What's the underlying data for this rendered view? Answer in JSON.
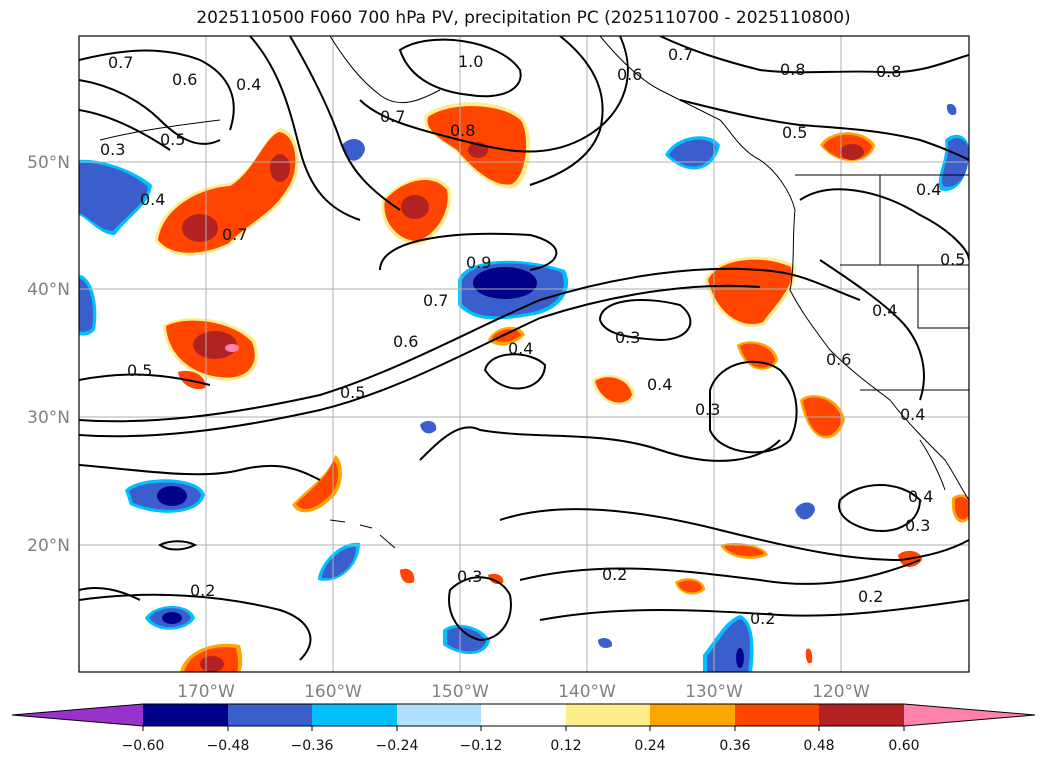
{
  "title": "2025110500 F060 700 hPa PV, precipitation PC (2025110700 - 2025110800)",
  "map": {
    "lon_labels": [
      "170°W",
      "160°W",
      "150°W",
      "140°W",
      "130°W",
      "120°W"
    ],
    "lat_labels": [
      "50°N",
      "40°N",
      "30°N",
      "20°N"
    ],
    "contour_labels": [
      {
        "text": "0.7"
      },
      {
        "text": "0.6"
      },
      {
        "text": "0.4"
      },
      {
        "text": "0.5"
      },
      {
        "text": "0.3"
      },
      {
        "text": "0.4"
      },
      {
        "text": "0.7"
      },
      {
        "text": "0.5"
      },
      {
        "text": "1.0"
      },
      {
        "text": "0.7"
      },
      {
        "text": "0.8"
      },
      {
        "text": "0.7"
      },
      {
        "text": "0.6"
      },
      {
        "text": "0.8"
      },
      {
        "text": "0.8"
      },
      {
        "text": "0.5"
      },
      {
        "text": "0.4"
      },
      {
        "text": "0.5"
      },
      {
        "text": "0.4"
      },
      {
        "text": "0.7"
      },
      {
        "text": "0.6"
      },
      {
        "text": "0.5"
      },
      {
        "text": "0.4"
      },
      {
        "text": "0.3"
      },
      {
        "text": "0.4"
      },
      {
        "text": "0.3"
      },
      {
        "text": "0.6"
      },
      {
        "text": "0.4"
      },
      {
        "text": "0.4"
      },
      {
        "text": "0.3"
      },
      {
        "text": "0.2"
      },
      {
        "text": "0.3"
      },
      {
        "text": "0.2"
      },
      {
        "text": "0.2"
      },
      {
        "text": "0.2"
      },
      {
        "text": "0.9"
      }
    ]
  },
  "colorbar": {
    "colors": [
      "#9932cc",
      "#00008b",
      "#3a5fcd",
      "#00bfff",
      "#b0e2ff",
      "#ffffff",
      "#ffec8b",
      "#ffa500",
      "#ff4500",
      "#b22222",
      "#ff82ab"
    ],
    "ticks": [
      "−0.60",
      "−0.48",
      "−0.36",
      "−0.24",
      "−0.12",
      "0.12",
      "0.24",
      "0.36",
      "0.48",
      "0.60"
    ]
  }
}
